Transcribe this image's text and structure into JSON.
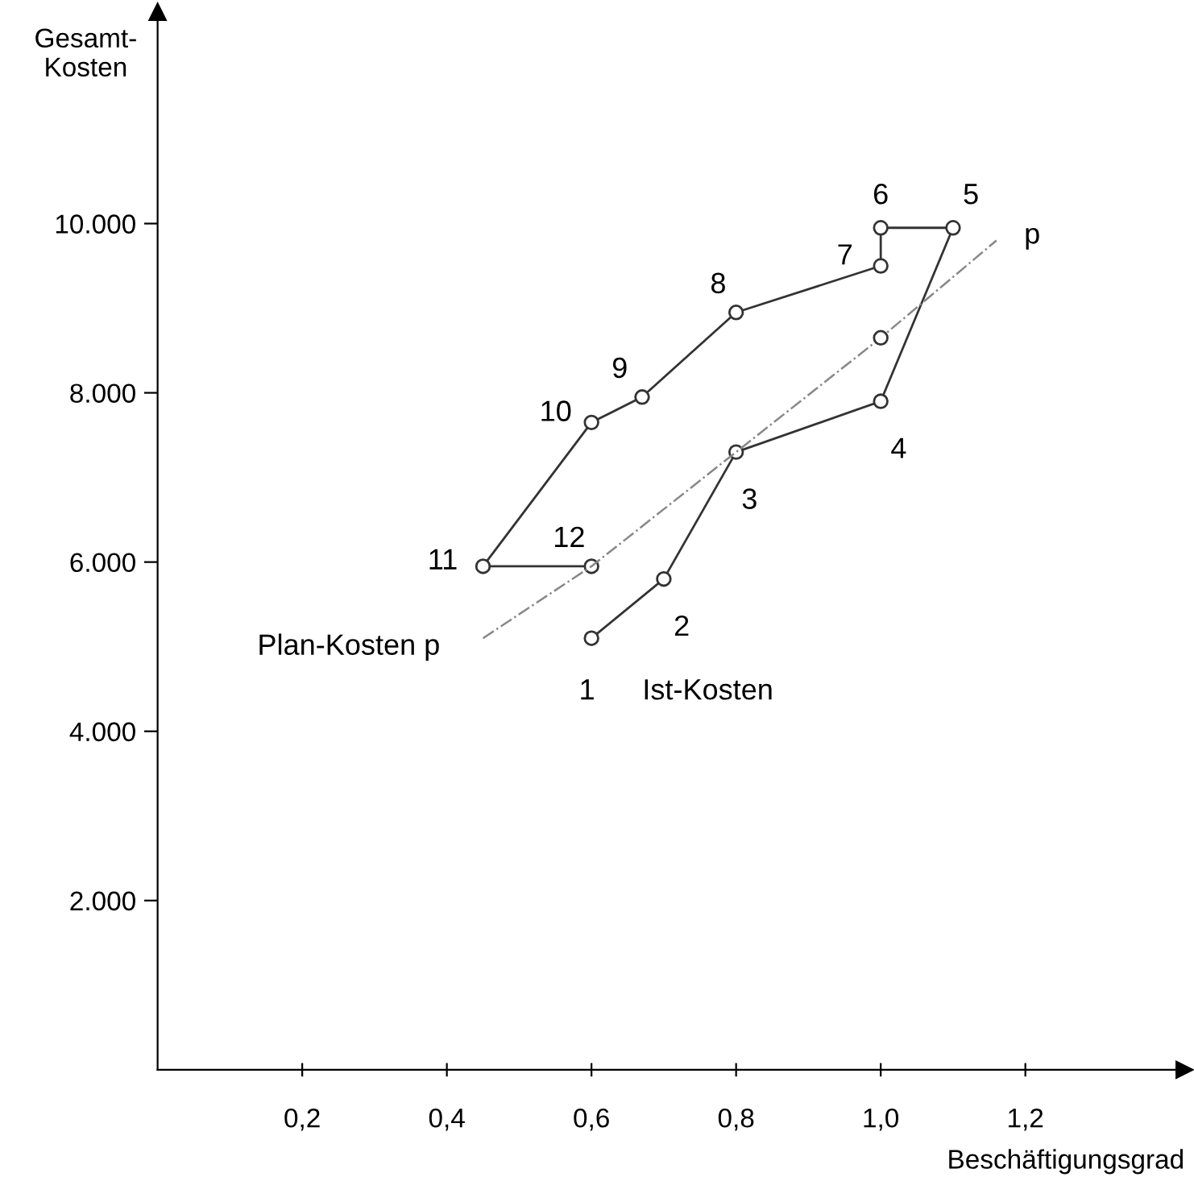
{
  "chart_data": {
    "type": "line",
    "xlabel": "Beschäftigungsgrad",
    "ylabel": "Gesamt-\nKosten",
    "series": [
      {
        "name": "Ist-Kosten",
        "color": "#333333",
        "marker": "circle",
        "line_style": "solid",
        "x": [
          0.6,
          0.7,
          0.8,
          1.0,
          1.1,
          1.0,
          1.0,
          0.8,
          0.67,
          0.6,
          0.45,
          0.6
        ],
        "values": [
          5100,
          5800,
          7300,
          7900,
          9950,
          9950,
          9500,
          8950,
          7950,
          7650,
          5950,
          5950
        ]
      },
      {
        "name": "Plan-Kosten p",
        "color": "#888888",
        "marker": "none",
        "line_style": "dashdot",
        "x": [
          0.45,
          0.6,
          0.8,
          1.0,
          1.16
        ],
        "values": [
          5100,
          5950,
          7300,
          8650,
          9800
        ]
      },
      {
        "type": "scatter",
        "color": "#333333",
        "marker": "circle",
        "x": [
          1.0
        ],
        "values": [
          8650
        ]
      }
    ],
    "annotations": [
      {
        "text": "3",
        "x": 0.8,
        "y": 7300
      },
      {
        "text": "4",
        "x": 1.0,
        "y": 7900
      },
      {
        "text": "5",
        "x": 1.1,
        "y": 9950
      },
      {
        "text": "6",
        "x": 1.0,
        "y": 9950
      },
      {
        "text": "7",
        "x": 1.0,
        "y": 9500
      },
      {
        "text": "8",
        "x": 0.8,
        "y": 8950
      },
      {
        "text": "9",
        "x": 0.67,
        "y": 7950
      },
      {
        "text": "10",
        "x": 0.6,
        "y": 7650
      },
      {
        "text": "11",
        "x": 0.45,
        "y": 5950
      },
      {
        "text": "12",
        "x": 0.6,
        "y": 5950
      },
      {
        "text": "1",
        "x": 0.6,
        "y": 5100
      },
      {
        "text": "2",
        "x": 0.7,
        "y": 5800
      },
      {
        "text": "p",
        "x": 1.16,
        "y": 9800
      }
    ],
    "xlim": [
      0,
      1.42
    ],
    "ylim": [
      0,
      12500
    ],
    "xticks": [
      {
        "value": 0.2,
        "label": "0,2"
      },
      {
        "value": 0.4,
        "label": "0,4"
      },
      {
        "value": 0.6,
        "label": "0,6"
      },
      {
        "value": 0.8,
        "label": "0,8"
      },
      {
        "value": 1.0,
        "label": "1,0"
      },
      {
        "value": 1.2,
        "label": "1,2"
      }
    ],
    "yticks": [
      {
        "value": 2000,
        "label": "2.000"
      },
      {
        "value": 4000,
        "label": "4.000"
      },
      {
        "value": 6000,
        "label": "6.000"
      },
      {
        "value": 8000,
        "label": "8.000"
      },
      {
        "value": 10000,
        "label": "10.000"
      }
    ],
    "grid": false,
    "legend": false
  }
}
